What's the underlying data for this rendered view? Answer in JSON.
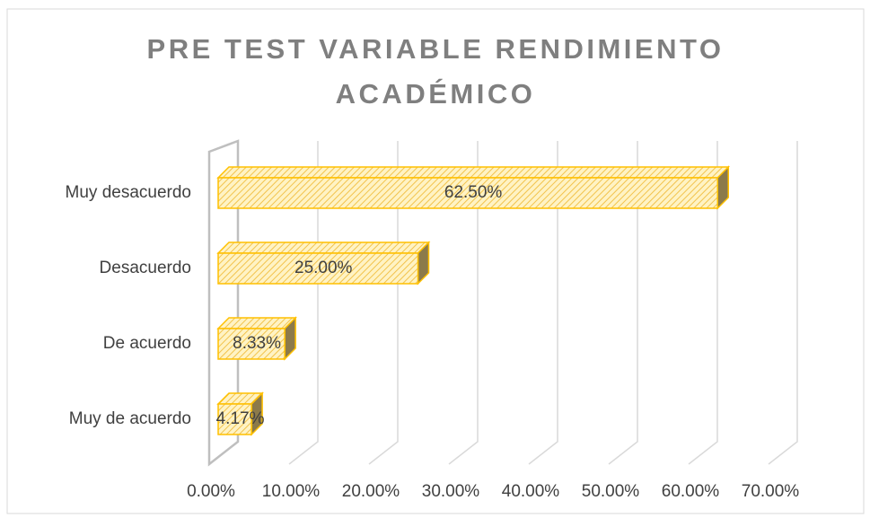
{
  "chart_data": {
    "type": "bar3d_horizontal",
    "title": "PRE TEST VARIABLE RENDIMIENTO ACADÉMICO",
    "categories": [
      "Muy  desacuerdo",
      "Desacuerdo",
      "De acuerdo",
      "Muy de acuerdo"
    ],
    "values": [
      62.5,
      25,
      8.33,
      4.17
    ],
    "value_labels": [
      "62.50%",
      "25.00%",
      "8.33%",
      "4.17%"
    ],
    "color": "#ffd966",
    "edge_color": "#ffc000",
    "xlim": [
      0,
      70
    ],
    "xticks": [
      {
        "value": 0,
        "label": "0.00%"
      },
      {
        "value": 10,
        "label": "10.00%"
      },
      {
        "value": 20,
        "label": "20.00%"
      },
      {
        "value": 30,
        "label": "30.00%"
      },
      {
        "value": 40,
        "label": "40.00%"
      },
      {
        "value": 50,
        "label": "50.00%"
      },
      {
        "value": 60,
        "label": "60.00%"
      },
      {
        "value": 70,
        "label": "70.00%"
      }
    ],
    "grid": true
  }
}
